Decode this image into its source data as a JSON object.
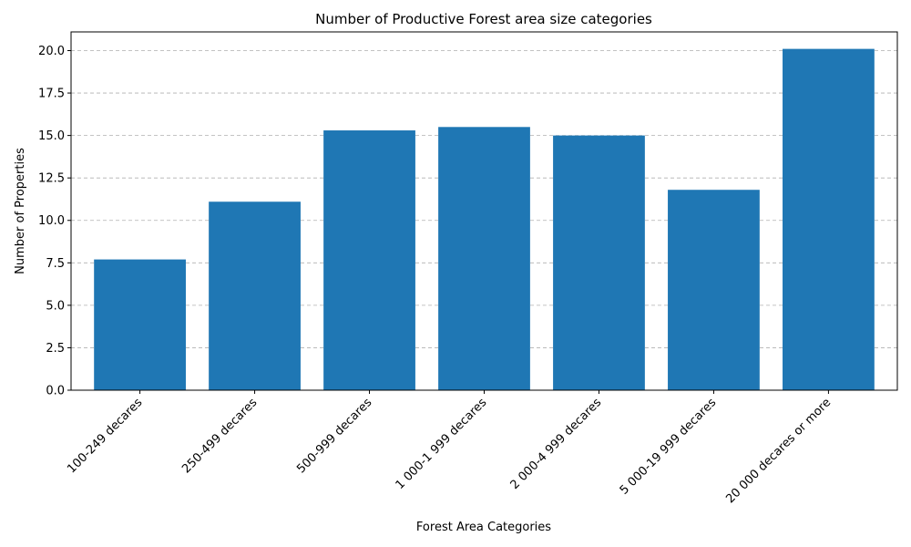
{
  "chart_data": {
    "type": "bar",
    "title": "Number of Productive Forest area size categories",
    "xlabel": "Forest Area Categories",
    "ylabel": "Number of Properties",
    "categories": [
      "100-249 decares",
      "250-499 decares",
      "500-999 decares",
      "1 000-1 999 decares",
      "2 000-4 999 decares",
      "5 000-19 999 decares",
      "20 000 decares or more"
    ],
    "values": [
      7.7,
      11.1,
      15.3,
      15.5,
      15.0,
      11.8,
      20.1
    ],
    "ylim": [
      0,
      21.1
    ],
    "yticks": [
      "0.0",
      "2.5",
      "5.0",
      "7.5",
      "10.0",
      "12.5",
      "15.0",
      "17.5",
      "20.0"
    ],
    "grid": "y-dashed",
    "bar_color": "#1f77b4"
  }
}
